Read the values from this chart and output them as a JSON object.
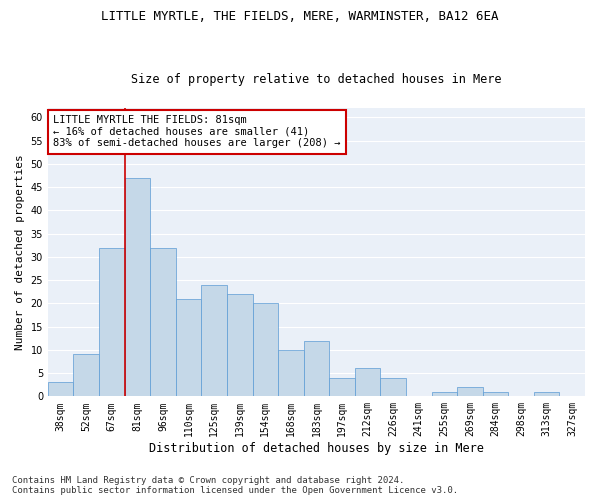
{
  "title": "LITTLE MYRTLE, THE FIELDS, MERE, WARMINSTER, BA12 6EA",
  "subtitle": "Size of property relative to detached houses in Mere",
  "xlabel": "Distribution of detached houses by size in Mere",
  "ylabel": "Number of detached properties",
  "categories": [
    "38sqm",
    "52sqm",
    "67sqm",
    "81sqm",
    "96sqm",
    "110sqm",
    "125sqm",
    "139sqm",
    "154sqm",
    "168sqm",
    "183sqm",
    "197sqm",
    "212sqm",
    "226sqm",
    "241sqm",
    "255sqm",
    "269sqm",
    "284sqm",
    "298sqm",
    "313sqm",
    "327sqm"
  ],
  "values": [
    3,
    9,
    32,
    47,
    32,
    21,
    24,
    22,
    20,
    10,
    12,
    4,
    6,
    4,
    0,
    1,
    2,
    1,
    0,
    1,
    0
  ],
  "bar_color": "#c5d8e8",
  "bar_edge_color": "#5b9bd5",
  "vline_color": "#cc0000",
  "annotation_title": "LITTLE MYRTLE THE FIELDS: 81sqm",
  "annotation_line1": "← 16% of detached houses are smaller (41)",
  "annotation_line2": "83% of semi-detached houses are larger (208) →",
  "annotation_box_color": "#ffffff",
  "annotation_box_edge": "#cc0000",
  "ylim": [
    0,
    62
  ],
  "yticks": [
    0,
    5,
    10,
    15,
    20,
    25,
    30,
    35,
    40,
    45,
    50,
    55,
    60
  ],
  "bg_color": "#eaf0f8",
  "grid_color": "#ffffff",
  "title_fontsize": 9,
  "subtitle_fontsize": 8.5,
  "xlabel_fontsize": 8.5,
  "ylabel_fontsize": 8,
  "tick_fontsize": 7,
  "annotation_fontsize": 7.5,
  "footer_fontsize": 6.5,
  "footer_line1": "Contains HM Land Registry data © Crown copyright and database right 2024.",
  "footer_line2": "Contains public sector information licensed under the Open Government Licence v3.0."
}
